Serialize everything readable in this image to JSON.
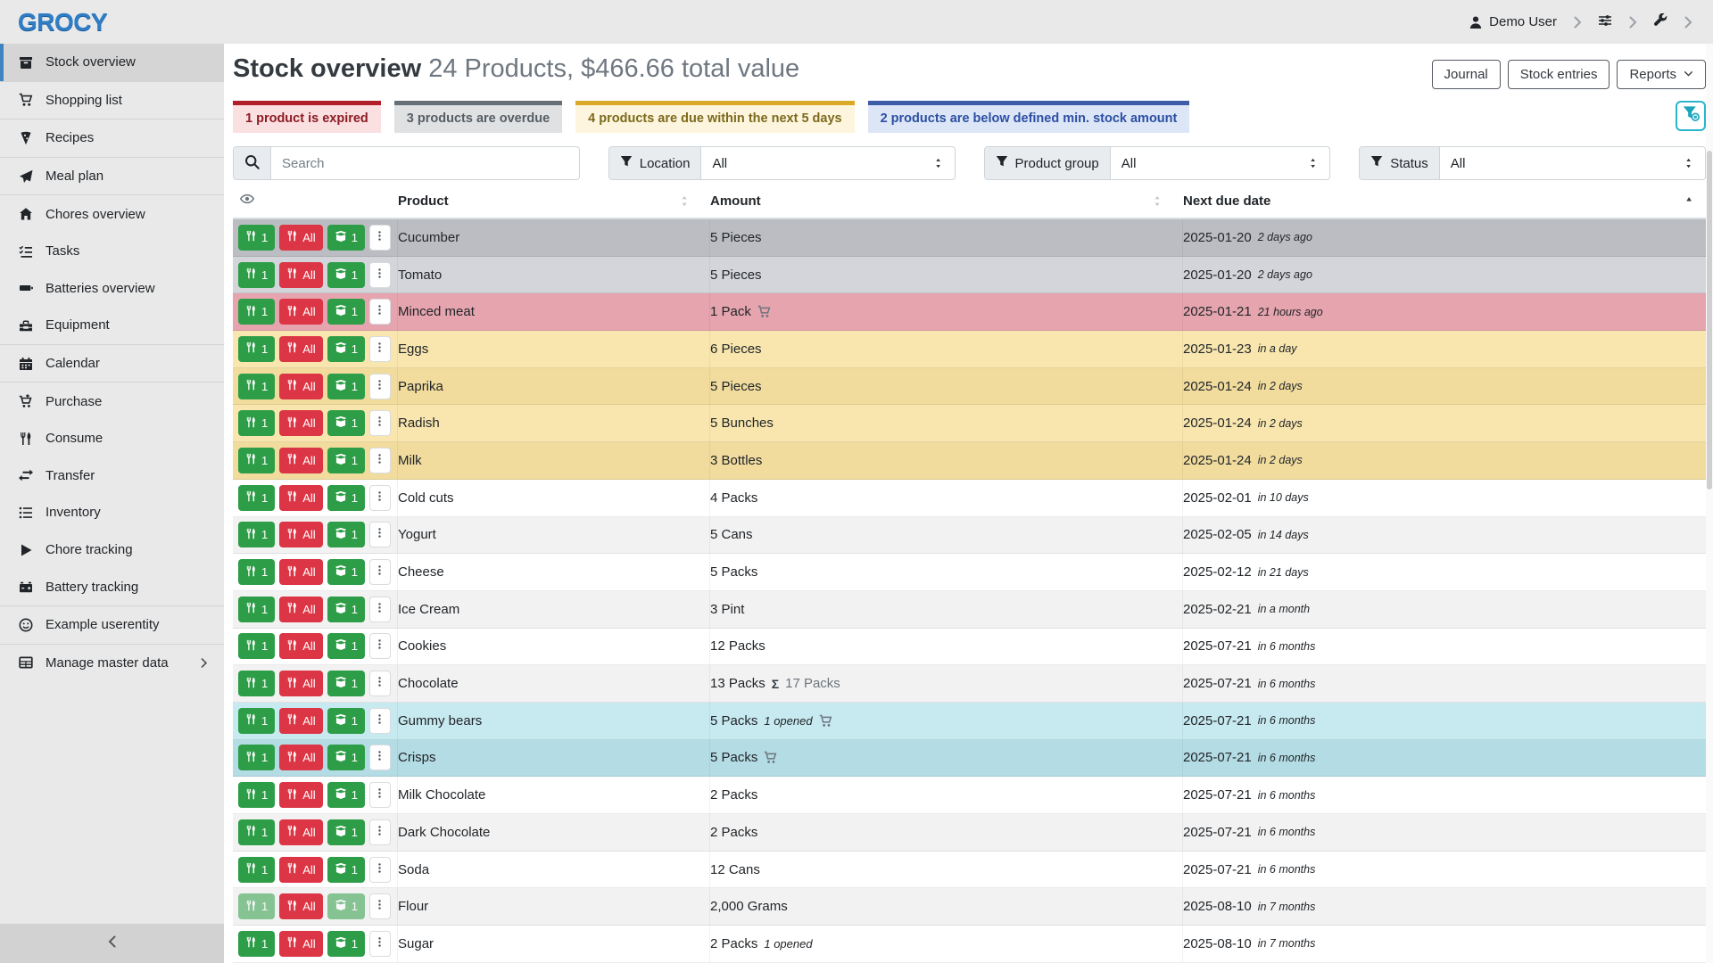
{
  "topbar": {
    "logo": "GROCY",
    "user_label": "Demo User"
  },
  "sidebar": {
    "items": [
      {
        "label": "Stock overview",
        "icon": "box",
        "active": true,
        "divider_after": true
      },
      {
        "label": "Shopping list",
        "icon": "cart",
        "divider_after": true
      },
      {
        "label": "Recipes",
        "icon": "pizza",
        "divider_after": true
      },
      {
        "label": "Meal plan",
        "icon": "plane",
        "divider_after": true
      },
      {
        "label": "Chores overview",
        "icon": "home"
      },
      {
        "label": "Tasks",
        "icon": "tasks"
      },
      {
        "label": "Batteries overview",
        "icon": "battery"
      },
      {
        "label": "Equipment",
        "icon": "toolbox",
        "divider_after": true
      },
      {
        "label": "Calendar",
        "icon": "calendar",
        "divider_after": true
      },
      {
        "label": "Purchase",
        "icon": "cart-plus"
      },
      {
        "label": "Consume",
        "icon": "utensils"
      },
      {
        "label": "Transfer",
        "icon": "transfer"
      },
      {
        "label": "Inventory",
        "icon": "list"
      },
      {
        "label": "Chore tracking",
        "icon": "play"
      },
      {
        "label": "Battery tracking",
        "icon": "car-battery",
        "divider_after": true
      },
      {
        "label": "Example userentity",
        "icon": "smile",
        "divider_after": true
      },
      {
        "label": "Manage master data",
        "icon": "table",
        "chevron": true
      }
    ]
  },
  "page": {
    "title": "Stock overview",
    "subtitle": "24 Products, $466.66 total value",
    "actions": [
      {
        "label": "Journal"
      },
      {
        "label": "Stock entries"
      },
      {
        "label": "Reports",
        "caret": true
      }
    ]
  },
  "status_cards": [
    {
      "text": "1 product is expired",
      "variant": "expired"
    },
    {
      "text": "3 products are overdue",
      "variant": "overdue"
    },
    {
      "text": "4 products are due within the next 5 days",
      "variant": "duesoon"
    },
    {
      "text": "2 products are below defined min. stock amount",
      "variant": "belowmin"
    }
  ],
  "filters": {
    "search_placeholder": "Search",
    "selects": [
      {
        "label": "Location",
        "value": "All"
      },
      {
        "label": "Product group",
        "value": "All"
      },
      {
        "label": "Status",
        "value": "All"
      }
    ]
  },
  "table": {
    "headers": {
      "product": "Product",
      "amount": "Amount",
      "due": "Next due date"
    },
    "row_buttons": {
      "consume_one": "1",
      "consume_all": "All",
      "open_one": "1"
    },
    "sum_symbol": "Σ",
    "rows": [
      {
        "product": "Cucumber",
        "amount": "5 Pieces",
        "date": "2025-01-20",
        "rel": "2 days ago",
        "variant": "secondary striped"
      },
      {
        "product": "Tomato",
        "amount": "5 Pieces",
        "date": "2025-01-20",
        "rel": "2 days ago",
        "variant": "secondary"
      },
      {
        "product": "Minced meat",
        "amount": "1 Pack",
        "cart": true,
        "date": "2025-01-21",
        "rel": "21 hours ago",
        "variant": "danger striped"
      },
      {
        "product": "Eggs",
        "amount": "6 Pieces",
        "date": "2025-01-23",
        "rel": "in a day",
        "variant": "warning"
      },
      {
        "product": "Paprika",
        "amount": "5 Pieces",
        "date": "2025-01-24",
        "rel": "in 2 days",
        "variant": "warning striped"
      },
      {
        "product": "Radish",
        "amount": "5 Bunches",
        "date": "2025-01-24",
        "rel": "in 2 days",
        "variant": "warning"
      },
      {
        "product": "Milk",
        "amount": "3 Bottles",
        "date": "2025-01-24",
        "rel": "in 2 days",
        "variant": "warning striped"
      },
      {
        "product": "Cold cuts",
        "amount": "4 Packs",
        "date": "2025-02-01",
        "rel": "in 10 days",
        "variant": ""
      },
      {
        "product": "Yogurt",
        "amount": "5 Cans",
        "date": "2025-02-05",
        "rel": "in 14 days",
        "variant": "striped"
      },
      {
        "product": "Cheese",
        "amount": "5 Packs",
        "date": "2025-02-12",
        "rel": "in 21 days",
        "variant": ""
      },
      {
        "product": "Ice Cream",
        "amount": "3 Pint",
        "date": "2025-02-21",
        "rel": "in a month",
        "variant": "striped"
      },
      {
        "product": "Cookies",
        "amount": "12 Packs",
        "date": "2025-07-21",
        "rel": "in 6 months",
        "variant": ""
      },
      {
        "product": "Chocolate",
        "amount": "13 Packs",
        "sum": "17 Packs",
        "date": "2025-07-21",
        "rel": "in 6 months",
        "variant": "striped"
      },
      {
        "product": "Gummy bears",
        "amount": "5 Packs",
        "opened": "1 opened",
        "cart": true,
        "date": "2025-07-21",
        "rel": "in 6 months",
        "variant": "info"
      },
      {
        "product": "Crisps",
        "amount": "5 Packs",
        "cart": true,
        "date": "2025-07-21",
        "rel": "in 6 months",
        "variant": "info striped"
      },
      {
        "product": "Milk Chocolate",
        "amount": "2 Packs",
        "date": "2025-07-21",
        "rel": "in 6 months",
        "variant": ""
      },
      {
        "product": "Dark Chocolate",
        "amount": "2 Packs",
        "date": "2025-07-21",
        "rel": "in 6 months",
        "variant": "striped"
      },
      {
        "product": "Soda",
        "amount": "12 Cans",
        "date": "2025-07-21",
        "rel": "in 6 months",
        "variant": ""
      },
      {
        "product": "Flour",
        "amount": "2,000 Grams",
        "date": "2025-08-10",
        "rel": "in 7 months",
        "variant": "striped",
        "faded": true
      },
      {
        "product": "Sugar",
        "amount": "2 Packs",
        "opened": "1 opened",
        "date": "2025-08-10",
        "rel": "in 7 months",
        "variant": ""
      },
      {
        "partial": true,
        "variant": "striped"
      }
    ]
  },
  "colors": {
    "brand_blue": "#2f7dc5",
    "active_accent": "#3d84c0",
    "consume_green": "#2d9e47",
    "consume_red": "#dc3545",
    "filter_teal": "#1ba4bc",
    "expired_red": "#b21e28",
    "overdue_gray": "#666e76",
    "duesoon_yellow": "#d9a928",
    "belowmin_blue": "#3f5ca9"
  }
}
